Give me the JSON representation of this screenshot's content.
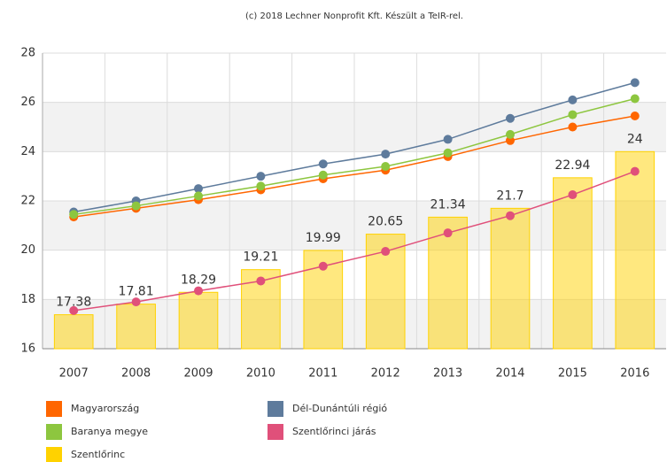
{
  "chart_data": {
    "type": "combo",
    "credits": "(c) 2018 Lechner Nonprofit Kft. Készült a TeIR-rel.",
    "categories": [
      "2007",
      "2008",
      "2009",
      "2010",
      "2011",
      "2012",
      "2013",
      "2014",
      "2015",
      "2016"
    ],
    "ylim": [
      16,
      28
    ],
    "yticks": [
      16,
      18,
      20,
      22,
      24,
      26,
      28
    ],
    "grid": true,
    "series": [
      {
        "name": "Magyarország",
        "type": "line",
        "color": "#ff6600",
        "values": [
          21.35,
          21.7,
          22.05,
          22.45,
          22.9,
          23.25,
          23.8,
          24.45,
          25.0,
          25.45
        ]
      },
      {
        "name": "Dél-Dunántúli régió",
        "type": "line",
        "color": "#5e7b9c",
        "values": [
          21.55,
          22.0,
          22.5,
          23.0,
          23.5,
          23.9,
          24.5,
          25.35,
          26.1,
          26.8
        ]
      },
      {
        "name": "Baranya megye",
        "type": "line",
        "color": "#8dc63f",
        "values": [
          21.45,
          21.8,
          22.2,
          22.6,
          23.05,
          23.4,
          23.95,
          24.7,
          25.5,
          26.15
        ]
      },
      {
        "name": "Szentlőrinci járás",
        "type": "line",
        "color": "#e0507a",
        "values": [
          17.55,
          17.9,
          18.35,
          18.75,
          19.35,
          19.95,
          20.7,
          21.4,
          22.25,
          23.2
        ]
      },
      {
        "name": "Szentlőrinc",
        "type": "bar",
        "color": "#ffd200",
        "values": [
          17.38,
          17.81,
          18.29,
          19.21,
          19.99,
          20.65,
          21.34,
          21.7,
          22.94,
          24
        ]
      }
    ]
  }
}
